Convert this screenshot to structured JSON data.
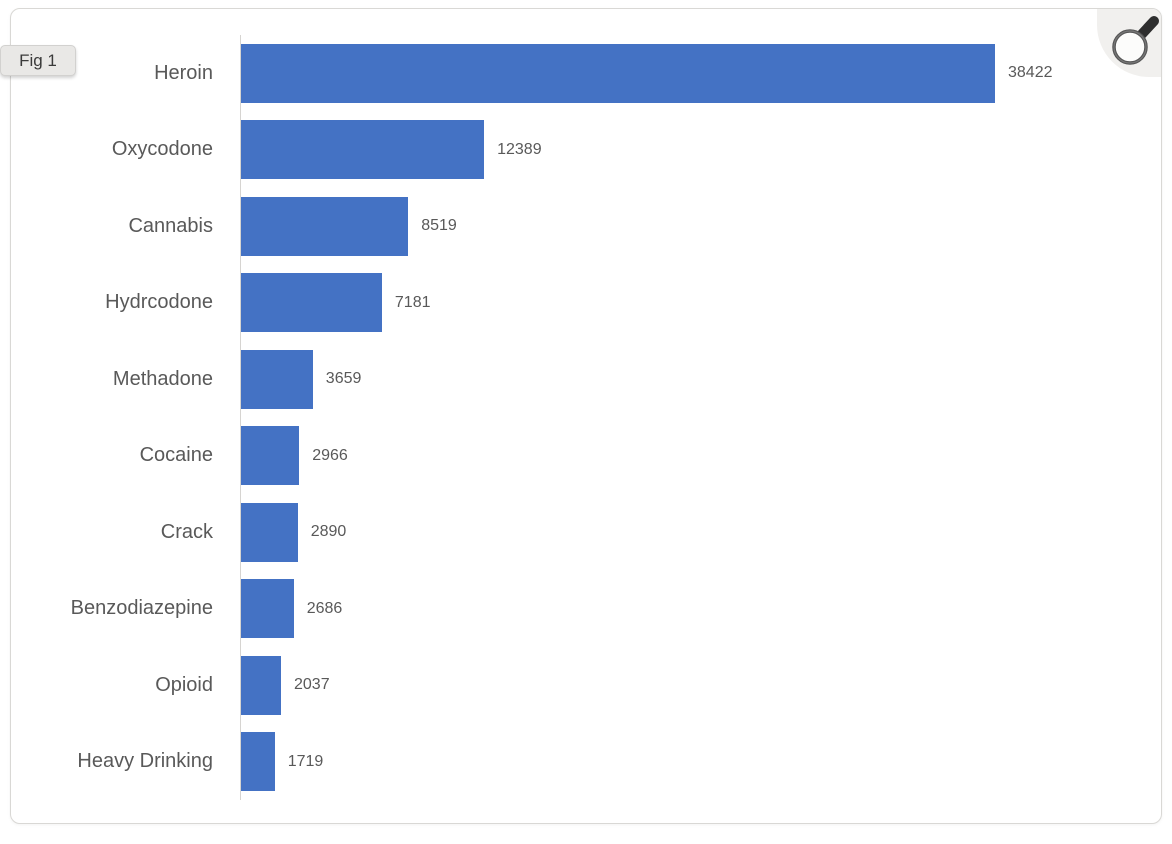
{
  "figure": {
    "label": "Fig 1"
  },
  "controls": {
    "zoom_button_icon": "magnifier-icon"
  },
  "colors": {
    "bar": "#4472C4",
    "labels": "#595959",
    "axis_line": "#d6d4d1",
    "card_border": "#d9d8d5",
    "badge_bg": "#e9e8e6",
    "corner_bg": "#f1f0ee"
  },
  "chart_data": {
    "type": "bar",
    "orientation": "horizontal",
    "title": "",
    "xlabel": "",
    "ylabel": "",
    "grid": false,
    "legend": false,
    "data_labels": true,
    "sort": "descending",
    "categories": [
      "Heroin",
      "Oxycodone",
      "Cannabis",
      "Hydrcodone",
      "Methadone",
      "Cocaine",
      "Crack",
      "Benzodiazepine",
      "Opioid",
      "Heavy Drinking"
    ],
    "values": [
      38422,
      12389,
      8519,
      7181,
      3659,
      2966,
      2890,
      2686,
      2037,
      1719
    ]
  }
}
